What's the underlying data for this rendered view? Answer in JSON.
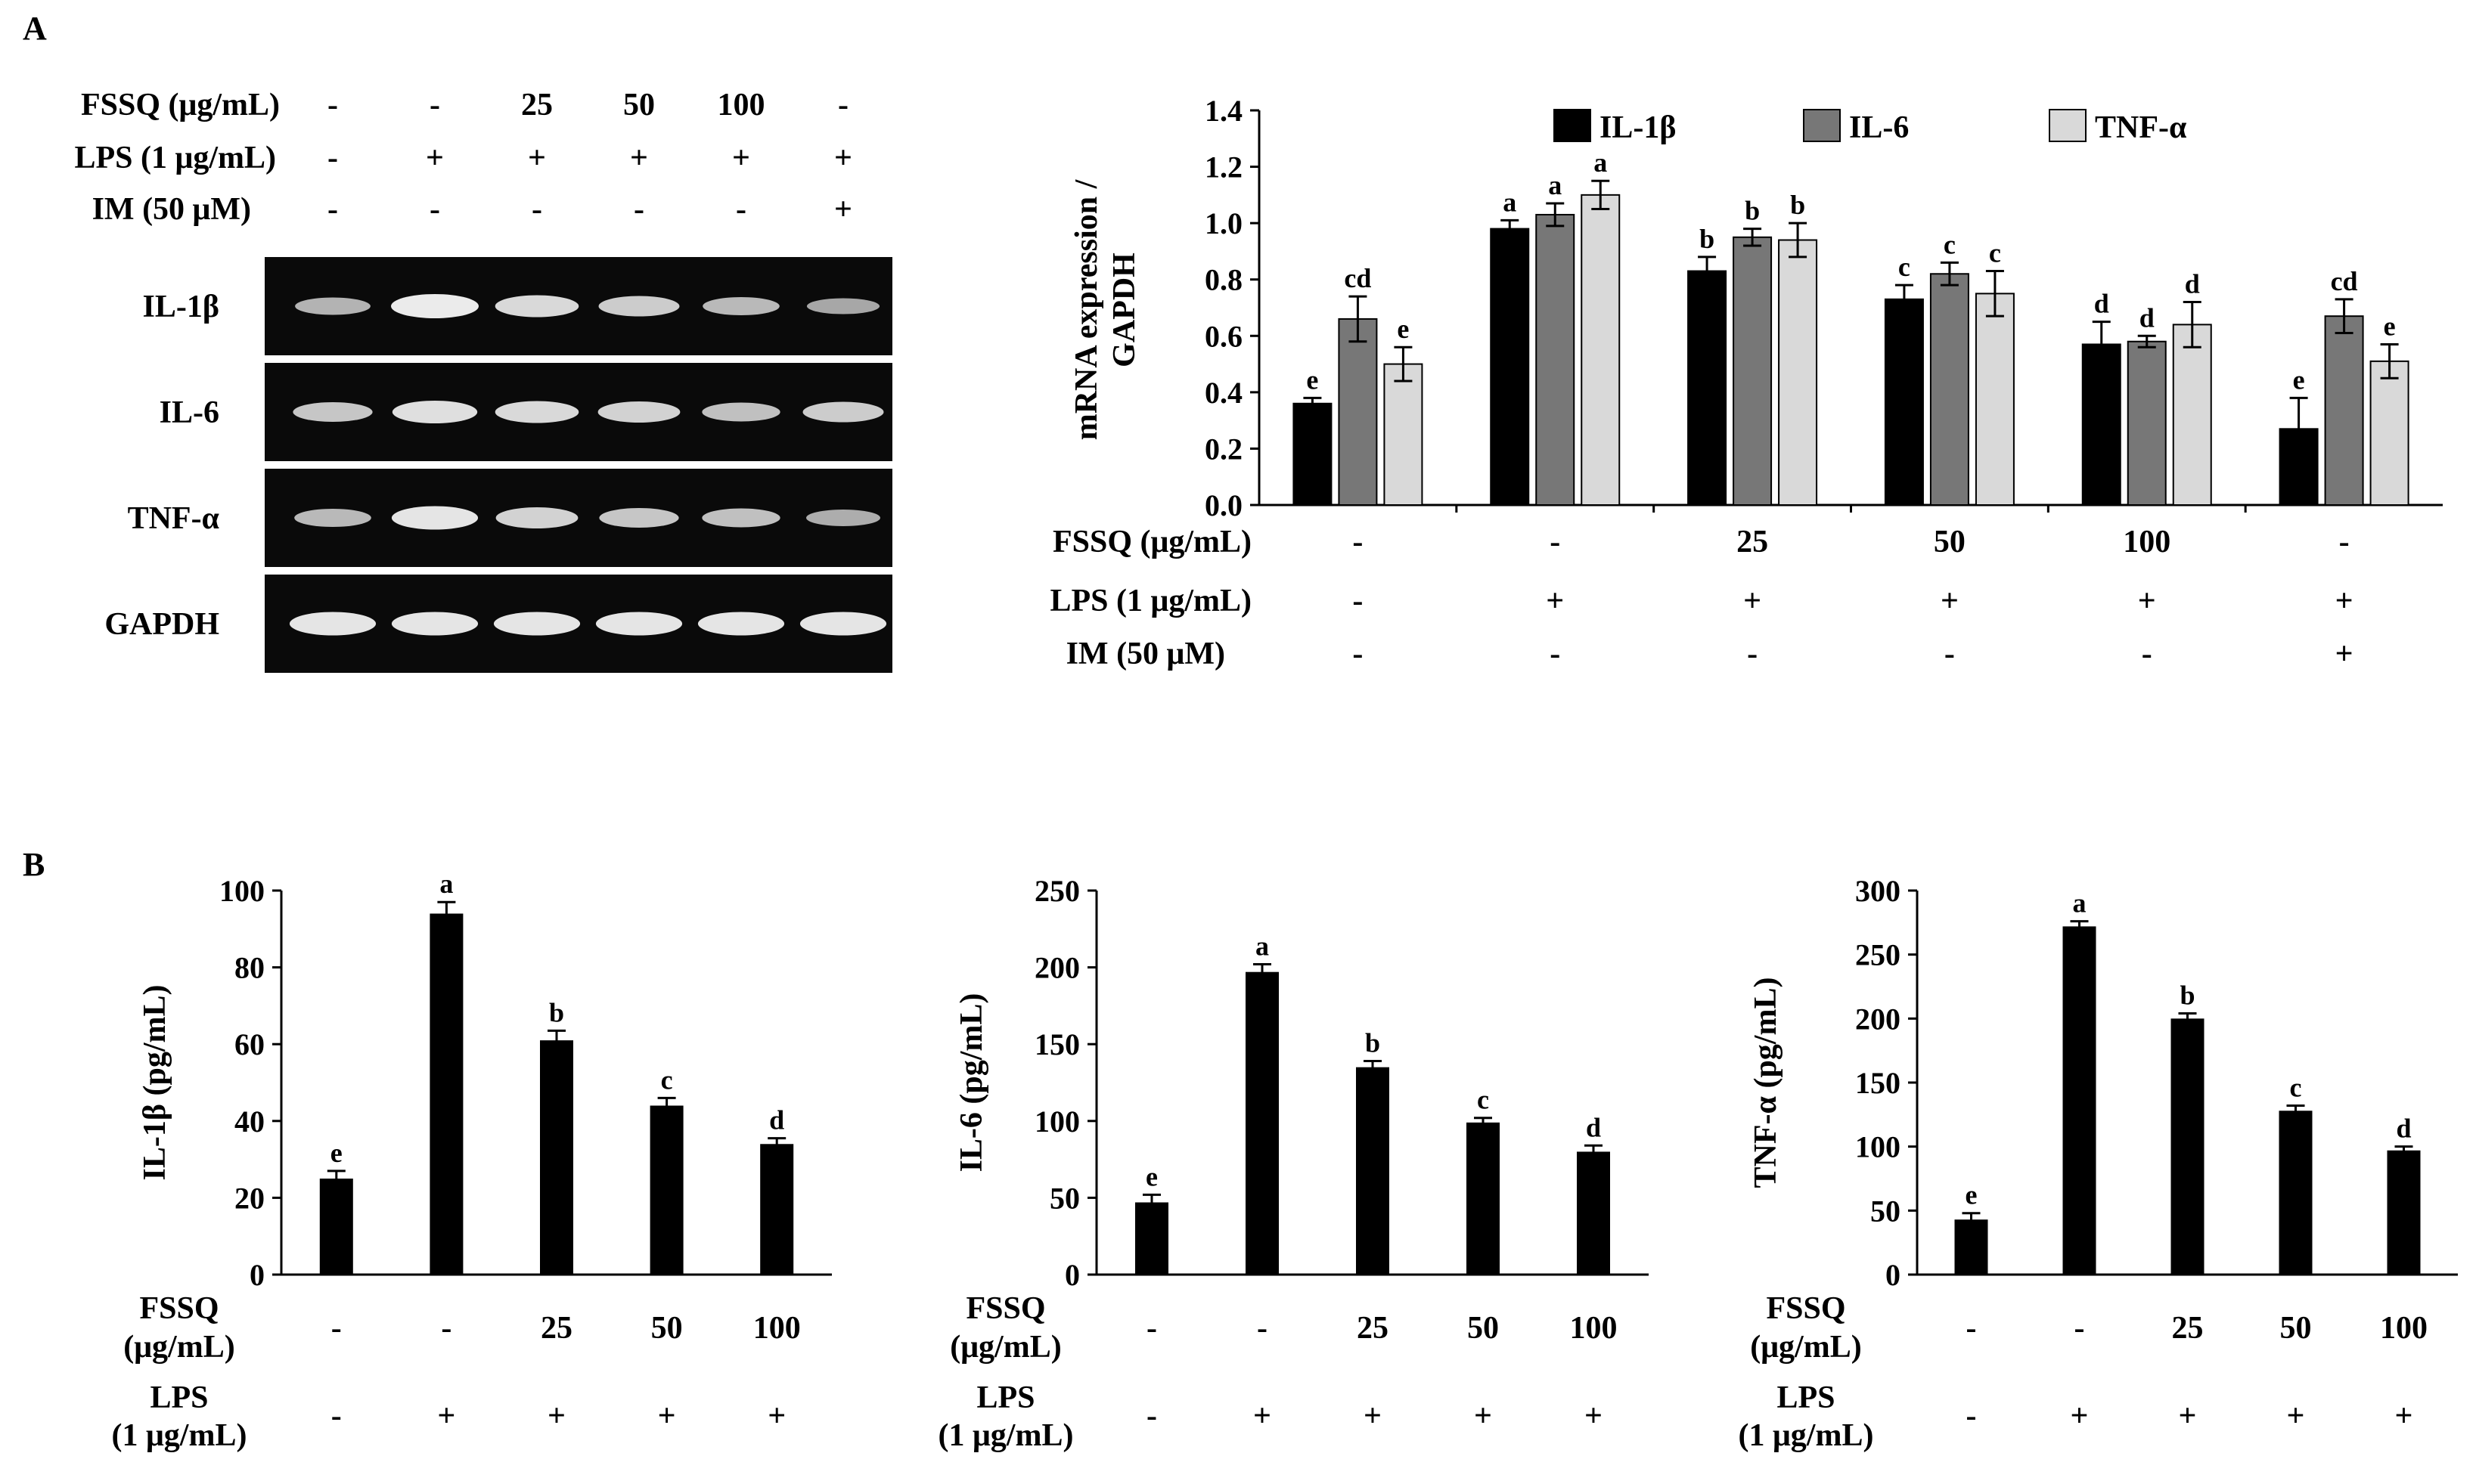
{
  "panels": {
    "a": "A",
    "b": "B"
  },
  "blot": {
    "treatment_rows": [
      {
        "label": "FSSQ  (μg/mL)",
        "values": [
          "-",
          "-",
          "25",
          "50",
          "100",
          "-"
        ]
      },
      {
        "label": "LPS (1 μg/mL)",
        "values": [
          "-",
          "+",
          "+",
          "+",
          "+",
          "+"
        ]
      },
      {
        "label": "IM (50 μM)",
        "values": [
          "-",
          "-",
          "-",
          "-",
          "-",
          "+"
        ]
      }
    ],
    "bands": [
      {
        "label": "IL-1β",
        "intensity": [
          0.55,
          1.0,
          0.85,
          0.75,
          0.6,
          0.45
        ]
      },
      {
        "label": "IL-6",
        "intensity": [
          0.7,
          0.9,
          0.85,
          0.8,
          0.65,
          0.75
        ]
      },
      {
        "label": "TNF-α",
        "intensity": [
          0.6,
          0.95,
          0.8,
          0.7,
          0.65,
          0.5
        ]
      },
      {
        "label": "GAPDH",
        "intensity": [
          0.95,
          0.95,
          0.95,
          0.95,
          0.95,
          0.95
        ]
      }
    ]
  },
  "chart_data": [
    {
      "id": "mrna",
      "type": "bar",
      "title": "",
      "ylabel_lines": [
        "mRNA expression /",
        "GAPDH"
      ],
      "ylim": [
        0,
        1.4
      ],
      "yticks": [
        "0.0",
        "0.2",
        "0.4",
        "0.6",
        "0.8",
        "1.0",
        "1.2",
        "1.4"
      ],
      "legend_position": "top",
      "series": [
        {
          "name": "IL-1β",
          "color": "#000000",
          "values": [
            0.36,
            0.98,
            0.83,
            0.73,
            0.57,
            0.27
          ],
          "errors": [
            0.02,
            0.03,
            0.05,
            0.05,
            0.08,
            0.11
          ],
          "letters": [
            "e",
            "a",
            "b",
            "c",
            "d",
            "e"
          ]
        },
        {
          "name": "IL-6",
          "color": "#777777",
          "values": [
            0.66,
            1.03,
            0.95,
            0.82,
            0.58,
            0.67
          ],
          "errors": [
            0.08,
            0.04,
            0.03,
            0.04,
            0.02,
            0.06
          ],
          "letters": [
            "cd",
            "a",
            "b",
            "c",
            "d",
            "cd"
          ]
        },
        {
          "name": "TNF-α",
          "color": "#d9d9d9",
          "values": [
            0.5,
            1.1,
            0.94,
            0.75,
            0.64,
            0.51
          ],
          "errors": [
            0.06,
            0.05,
            0.06,
            0.08,
            0.08,
            0.06
          ],
          "letters": [
            "e",
            "a",
            "b",
            "c",
            "d",
            "e"
          ]
        }
      ],
      "treatment_rows": [
        {
          "label": "FSSQ  (μg/mL)",
          "values": [
            "-",
            "-",
            "25",
            "50",
            "100",
            "-"
          ]
        },
        {
          "label": "LPS (1 μg/mL)",
          "values": [
            "-",
            "+",
            "+",
            "+",
            "+",
            "+"
          ]
        },
        {
          "label": "IM (50 μM)",
          "values": [
            "-",
            "-",
            "-",
            "-",
            "-",
            "+"
          ]
        }
      ]
    },
    {
      "id": "il1b",
      "type": "bar",
      "ylabel": "IL-1β (pg/mL)",
      "ylim": [
        0,
        100
      ],
      "yticks": [
        "0",
        "20",
        "40",
        "60",
        "80",
        "100"
      ],
      "values": [
        25,
        94,
        61,
        44,
        34
      ],
      "errors": [
        2,
        3,
        2.5,
        2,
        1.5
      ],
      "letters": [
        "e",
        "a",
        "b",
        "c",
        "d"
      ],
      "treatment_rows": [
        {
          "label_lines": [
            "FSSQ",
            "(μg/mL)"
          ],
          "values": [
            "-",
            "-",
            "25",
            "50",
            "100"
          ]
        },
        {
          "label_lines": [
            "LPS",
            "(1 μg/mL)"
          ],
          "values": [
            "-",
            "+",
            "+",
            "+",
            "+"
          ]
        }
      ]
    },
    {
      "id": "il6",
      "type": "bar",
      "ylabel": "IL-6 (pg/mL)",
      "ylim": [
        0,
        250
      ],
      "yticks": [
        "0",
        "50",
        "100",
        "150",
        "200",
        "250"
      ],
      "values": [
        47,
        197,
        135,
        99,
        80
      ],
      "errors": [
        5,
        5,
        4,
        3,
        4
      ],
      "letters": [
        "e",
        "a",
        "b",
        "c",
        "d"
      ],
      "treatment_rows": [
        {
          "label_lines": [
            "FSSQ",
            "(μg/mL)"
          ],
          "values": [
            "-",
            "-",
            "25",
            "50",
            "100"
          ]
        },
        {
          "label_lines": [
            "LPS",
            "(1 μg/mL)"
          ],
          "values": [
            "-",
            "+",
            "+",
            "+",
            "+"
          ]
        }
      ]
    },
    {
      "id": "tnfa",
      "type": "bar",
      "ylabel": "TNF-α (pg/mL)",
      "ylim": [
        0,
        300
      ],
      "yticks": [
        "0",
        "50",
        "100",
        "150",
        "200",
        "250",
        "300"
      ],
      "values": [
        43,
        272,
        200,
        128,
        97
      ],
      "errors": [
        5,
        4,
        4,
        4,
        3
      ],
      "letters": [
        "e",
        "a",
        "b",
        "c",
        "d"
      ],
      "treatment_rows": [
        {
          "label_lines": [
            "FSSQ",
            "(μg/mL)"
          ],
          "values": [
            "-",
            "-",
            "25",
            "50",
            "100"
          ]
        },
        {
          "label_lines": [
            "LPS",
            "(1 μg/mL)"
          ],
          "values": [
            "-",
            "+",
            "+",
            "+",
            "+"
          ]
        }
      ]
    }
  ]
}
